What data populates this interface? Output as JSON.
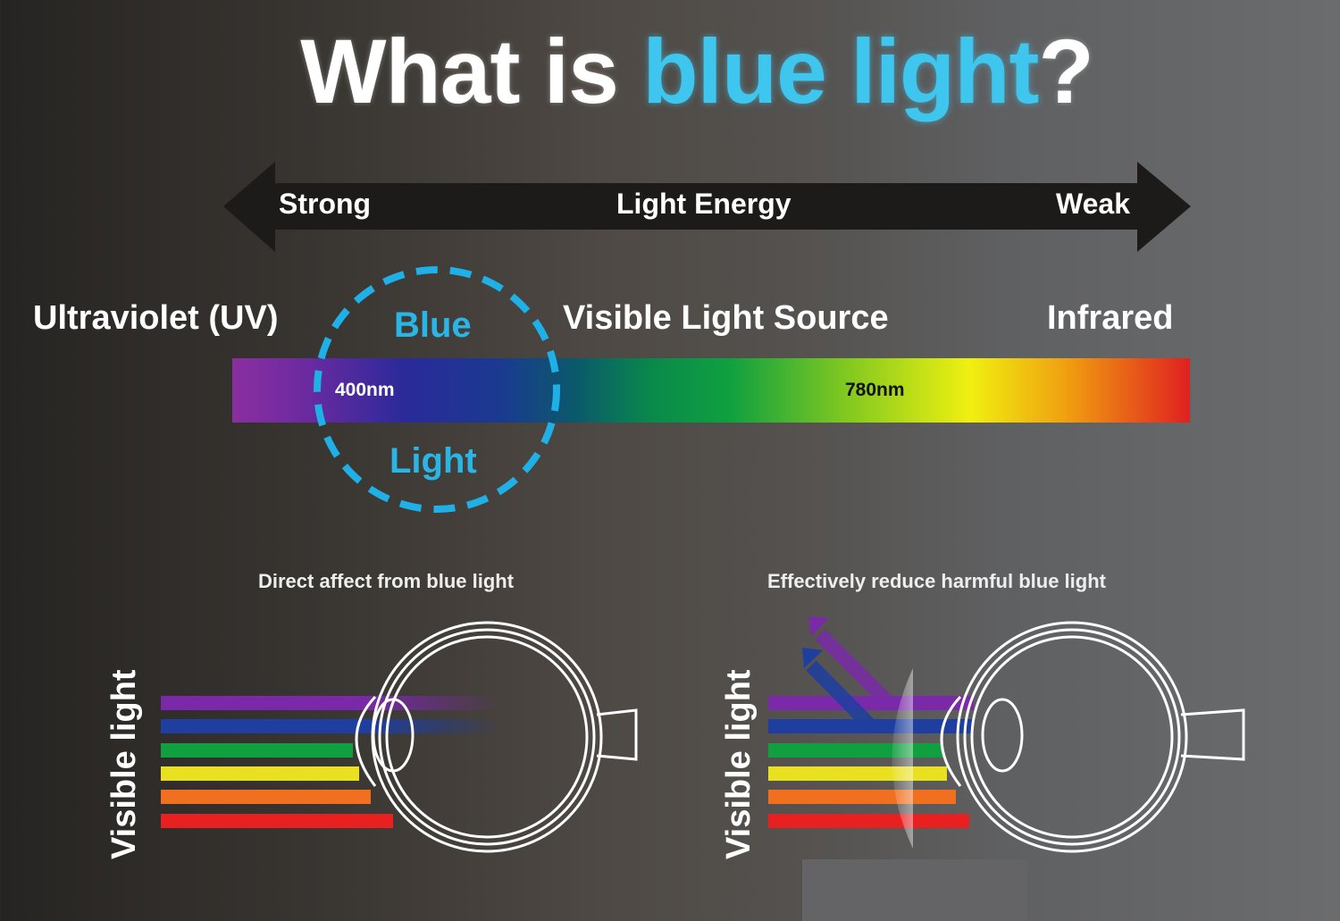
{
  "title": {
    "part1": "What is ",
    "highlight": "blue light",
    "part2": "?"
  },
  "energy_arrow": {
    "left": "Strong",
    "center": "Light Energy",
    "right": "Weak"
  },
  "spectrum": {
    "uv": "Ultraviolet (UV)",
    "blue_top": "Blue",
    "blue_bottom": "Light",
    "visible": "Visible Light Source",
    "infrared": "Infrared",
    "mark1": "400nm",
    "mark2": "780nm"
  },
  "left_panel": {
    "caption": "Direct affect from blue light",
    "side_label": "Visible light"
  },
  "right_panel": {
    "caption": "Effectively reduce harmful blue light",
    "side_label": "Visible light"
  },
  "colors": {
    "accent": "#29b6e6",
    "ray_colors": [
      "#7a2aa8",
      "#1e3fa0",
      "#11a040",
      "#e8e020",
      "#f07020",
      "#e82020"
    ]
  }
}
